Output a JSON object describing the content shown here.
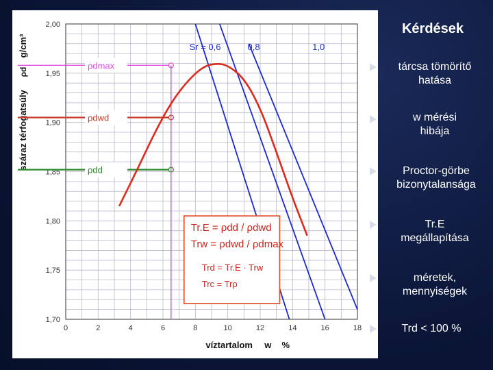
{
  "chart_data": {
    "type": "line",
    "x_axis": {
      "label": "víztartalom",
      "symbol": "w",
      "unit": "%",
      "range": [
        0,
        18
      ],
      "ticks": [
        "0",
        "2",
        "4",
        "6",
        "8",
        "10",
        "12",
        "14",
        "16",
        "18"
      ]
    },
    "y_axis": {
      "label": "száraz térfogatsúly",
      "symbol": "ρd",
      "unit": "g/cm³",
      "range": [
        1.7,
        2.0
      ],
      "ticks": [
        "1,70",
        "1,75",
        "1,80",
        "1,85",
        "1,90",
        "1,95",
        "2,00"
      ]
    },
    "saturation_lines": {
      "labels": [
        "Sr = 0,6",
        "0,8",
        "1,0"
      ],
      "lines": [
        {
          "Sr": 0.6,
          "points": [
            [
              8.0,
              2.0
            ],
            [
              13.8,
              1.7
            ]
          ]
        },
        {
          "Sr": 0.8,
          "points": [
            [
              9.5,
              2.0
            ],
            [
              16.0,
              1.7
            ]
          ]
        },
        {
          "Sr": 1.0,
          "points": [
            [
              11.3,
              1.98
            ],
            [
              18.0,
              1.71
            ]
          ]
        }
      ]
    },
    "proctor_curve": {
      "color": "#dd2a1e",
      "points": [
        [
          3.3,
          1.815
        ],
        [
          4.5,
          1.855
        ],
        [
          5.5,
          1.89
        ],
        [
          6.5,
          1.92
        ],
        [
          7.5,
          1.942
        ],
        [
          8.5,
          1.957
        ],
        [
          9.3,
          1.96
        ],
        [
          10.0,
          1.958
        ],
        [
          11.0,
          1.945
        ],
        [
          12.0,
          1.915
        ],
        [
          13.0,
          1.87
        ],
        [
          14.0,
          1.823
        ],
        [
          14.9,
          1.785
        ]
      ]
    },
    "reference_levels": [
      {
        "label": "ρdmax",
        "y": 1.958,
        "color": "#e04ce0"
      },
      {
        "label": "ρdwd",
        "y": 1.905,
        "color": "#c83a2a"
      },
      {
        "label": "ρdd",
        "y": 1.852,
        "color": "#2a8a2a"
      }
    ],
    "vertical_marker_x": 6.5,
    "formula_box": {
      "lines": [
        "Tr.E = ρdd / ρdwd",
        "Trw = ρdwd / ρdmax",
        "Trd = Tr.E · Trw",
        "Trc = Trρ"
      ]
    },
    "grid": true
  },
  "questions": {
    "title": "Kérdések",
    "items": [
      "tárcsa tömörítő hatása",
      "w mérési hibája",
      "Proctor-görbe bizonytalansága",
      "Tr.E megállapítása",
      "méretek, mennyiségek",
      "Trd < 100 %"
    ]
  }
}
